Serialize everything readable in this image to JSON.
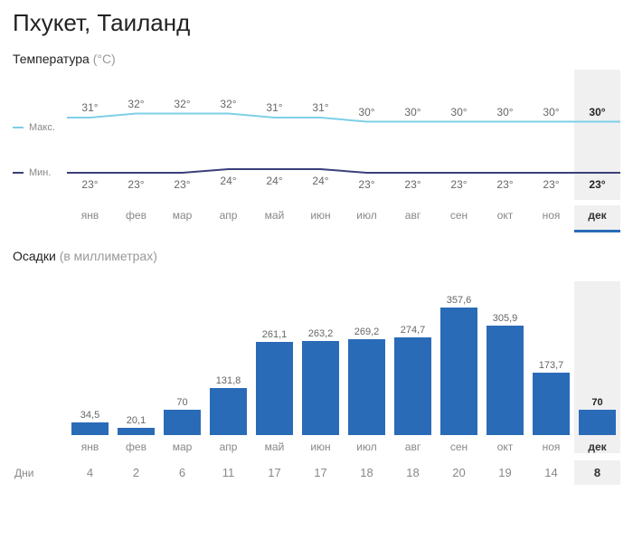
{
  "title": "Пхукет, Таиланд",
  "temperature_section": {
    "label": "Температура",
    "unit": "(°C)",
    "legend_max": "Макс.",
    "legend_min": "Мин.",
    "max_color": "#7ecfe6",
    "min_color": "#3b3f7a",
    "label_fontsize": 12,
    "highlight_index": 11,
    "months": [
      "янв",
      "фев",
      "мар",
      "апр",
      "май",
      "июн",
      "июл",
      "авг",
      "сен",
      "окт",
      "ноя",
      "дек"
    ],
    "max_values": [
      31,
      32,
      32,
      32,
      31,
      31,
      30,
      30,
      30,
      30,
      30,
      30
    ],
    "min_values": [
      23,
      23,
      23,
      24,
      24,
      24,
      23,
      23,
      23,
      23,
      23,
      23
    ],
    "max_labels": [
      "31°",
      "32°",
      "32°",
      "32°",
      "31°",
      "31°",
      "30°",
      "30°",
      "30°",
      "30°",
      "30°",
      "30°"
    ],
    "min_labels": [
      "23°",
      "23°",
      "23°",
      "24°",
      "24°",
      "24°",
      "23°",
      "23°",
      "23°",
      "23°",
      "23°",
      "23°"
    ],
    "y_range_max": [
      29,
      33
    ],
    "y_range_min": [
      22,
      25
    ]
  },
  "precip_section": {
    "label": "Осадки",
    "unit": "(в миллиметрах)",
    "bar_color": "#2a6bb8",
    "label_fontsize": 11,
    "highlight_index": 11,
    "y_max": 380,
    "months": [
      "янв",
      "фев",
      "мар",
      "апр",
      "май",
      "июн",
      "июл",
      "авг",
      "сен",
      "окт",
      "ноя",
      "дек"
    ],
    "values": [
      34.5,
      20.1,
      70,
      131.8,
      261.1,
      263.2,
      269.2,
      274.7,
      357.6,
      305.9,
      173.7,
      70
    ],
    "value_labels": [
      "34,5",
      "20,1",
      "70",
      "131,8",
      "261,1",
      "263,2",
      "269,2",
      "274,7",
      "357,6",
      "305,9",
      "173,7",
      "70"
    ]
  },
  "days_row": {
    "label": "Дни",
    "values": [
      4,
      2,
      6,
      11,
      17,
      17,
      18,
      18,
      20,
      19,
      14,
      8
    ],
    "highlight_index": 11
  },
  "layout": {
    "background_color": "#ffffff",
    "grid_color": "#e0e0e0",
    "highlight_bg": "#f0f0f0",
    "highlight_underline": "#2a6bb8"
  }
}
